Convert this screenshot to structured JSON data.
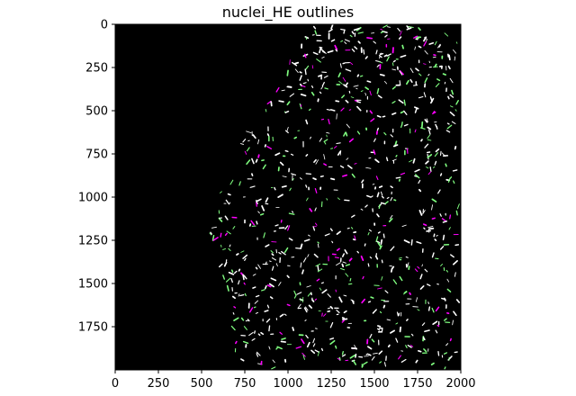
{
  "chart_data": {
    "type": "image",
    "title": "nuclei_HE outlines",
    "xlabel": "",
    "ylabel": "",
    "xlim": [
      0,
      2000
    ],
    "ylim": [
      2000,
      0
    ],
    "x_ticks": [
      0,
      250,
      500,
      750,
      1000,
      1250,
      1500,
      1750,
      2000
    ],
    "y_ticks": [
      0,
      250,
      500,
      750,
      1000,
      1250,
      1500,
      1750
    ],
    "x_tick_labels": [
      "0",
      "250",
      "500",
      "750",
      "1000",
      "1250",
      "1500",
      "1750",
      "2000"
    ],
    "y_tick_labels": [
      "0",
      "250",
      "500",
      "750",
      "1000",
      "1250",
      "1500",
      "1750"
    ],
    "grid": false,
    "background_color": "#000000",
    "outline_colors": [
      "#ffffff",
      "#80ff80",
      "#ff00ff"
    ],
    "tissue_boundary": [
      [
        1150,
        0
      ],
      [
        1080,
        120
      ],
      [
        980,
        260
      ],
      [
        880,
        420
      ],
      [
        800,
        560
      ],
      [
        720,
        700
      ],
      [
        650,
        850
      ],
      [
        600,
        1000
      ],
      [
        560,
        1150
      ],
      [
        540,
        1250
      ],
      [
        560,
        1350
      ],
      [
        620,
        1450
      ],
      [
        650,
        1600
      ],
      [
        680,
        1800
      ],
      [
        700,
        2000
      ]
    ]
  }
}
